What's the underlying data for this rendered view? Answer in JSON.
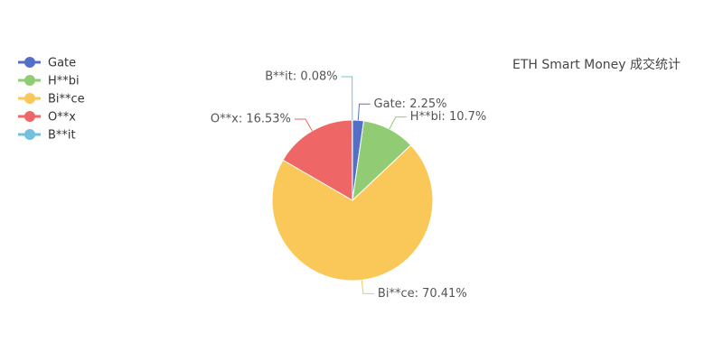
{
  "chart_data": {
    "type": "pie",
    "title": "ETH Smart Money 成交统计",
    "categories": [
      "Gate",
      "H**bi",
      "Bi**ce",
      "O**x",
      "B**it"
    ],
    "values": [
      2.25,
      10.7,
      70.41,
      16.53,
      0.08
    ],
    "value_labels": [
      "Gate: 2.25%",
      "H**bi: 10.7%",
      "Bi**ce: 70.41%",
      "O**x: 16.53%",
      "B**it: 0.08%"
    ],
    "colors": [
      "#5470c6",
      "#91cc75",
      "#fac858",
      "#ee6666",
      "#73c0de"
    ],
    "legend": "top-left"
  }
}
